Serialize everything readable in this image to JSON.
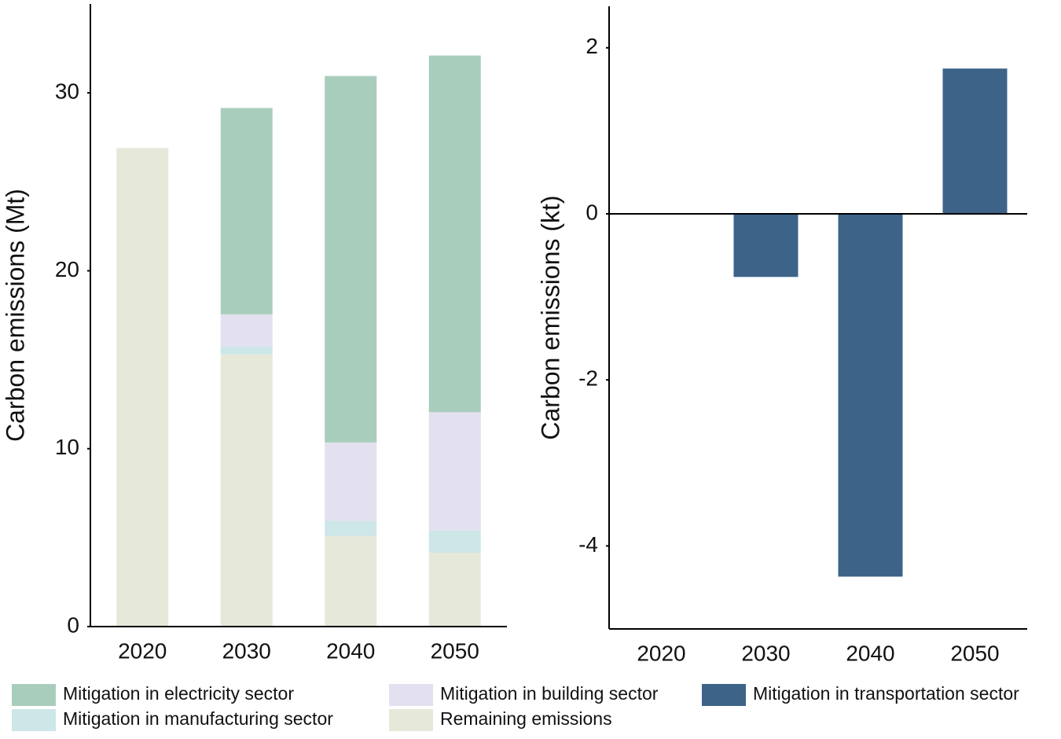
{
  "chart_data": [
    {
      "type": "bar",
      "stacked": true,
      "y_label": "Carbon emissions (Mt)",
      "categories": [
        "2020",
        "2030",
        "2040",
        "2050"
      ],
      "series": [
        {
          "name": "Remaining emissions",
          "color": "#e6e8da",
          "values": [
            26.9,
            15.3,
            5.1,
            4.15
          ]
        },
        {
          "name": "Mitigation in manufacturing sector",
          "color": "#cde6e8",
          "values": [
            0,
            0.45,
            0.85,
            1.25
          ]
        },
        {
          "name": "Mitigation in building sector",
          "color": "#e3e0ef",
          "values": [
            0,
            1.8,
            4.4,
            6.65
          ]
        },
        {
          "name": "Mitigation in electricity sector",
          "color": "#a8cdbd",
          "values": [
            0,
            11.6,
            20.6,
            20.05
          ]
        }
      ],
      "ylim": [
        0,
        35
      ],
      "yticks": [
        0,
        10,
        20,
        30
      ]
    },
    {
      "type": "bar",
      "y_label": "Carbon emissions (kt)",
      "zero_line": true,
      "categories": [
        "2020",
        "2030",
        "2040",
        "2050"
      ],
      "series": [
        {
          "name": "Mitigation in transportation sector",
          "color": "#3d6389",
          "values": [
            0,
            -0.76,
            -4.37,
            1.75
          ]
        }
      ],
      "ylim": [
        -5,
        2.5
      ],
      "yticks": [
        -4,
        -2,
        0,
        2
      ]
    }
  ]
}
